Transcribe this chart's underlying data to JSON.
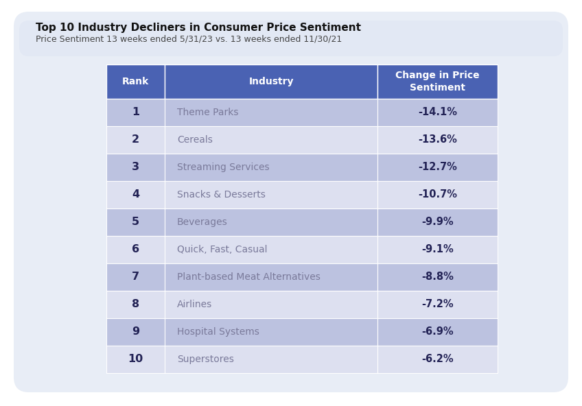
{
  "title": "Top 10 Industry Decliners in Consumer Price Sentiment",
  "subtitle": "Price Sentiment 13 weeks ended 5/31/23 vs. 13 weeks ended 11/30/21",
  "col_headers": [
    "Rank",
    "Industry",
    "Change in Price\nSentiment"
  ],
  "rows": [
    [
      "1",
      "Theme Parks",
      "-14.1%"
    ],
    [
      "2",
      "Cereals",
      "-13.6%"
    ],
    [
      "3",
      "Streaming Services",
      "-12.7%"
    ],
    [
      "4",
      "Snacks & Desserts",
      "-10.7%"
    ],
    [
      "5",
      "Beverages",
      "-9.9%"
    ],
    [
      "6",
      "Quick, Fast, Casual",
      "-9.1%"
    ],
    [
      "7",
      "Plant-based Meat Alternatives",
      "-8.8%"
    ],
    [
      "8",
      "Airlines",
      "-7.2%"
    ],
    [
      "9",
      "Hospital Systems",
      "-6.9%"
    ],
    [
      "10",
      "Superstores",
      "-6.2%"
    ]
  ],
  "header_bg": "#4a62b3",
  "header_text": "#ffffff",
  "row_odd_bg": "#bcc2e0",
  "row_even_bg": "#dde0f0",
  "row_text": "#7a7a9a",
  "rank_text": "#222255",
  "change_text": "#222255",
  "title_card_bg": "#e2e8f4",
  "title_color": "#111111",
  "subtitle_color": "#444444",
  "fig_bg": "#ffffff",
  "outer_bg": "#e8edf6"
}
